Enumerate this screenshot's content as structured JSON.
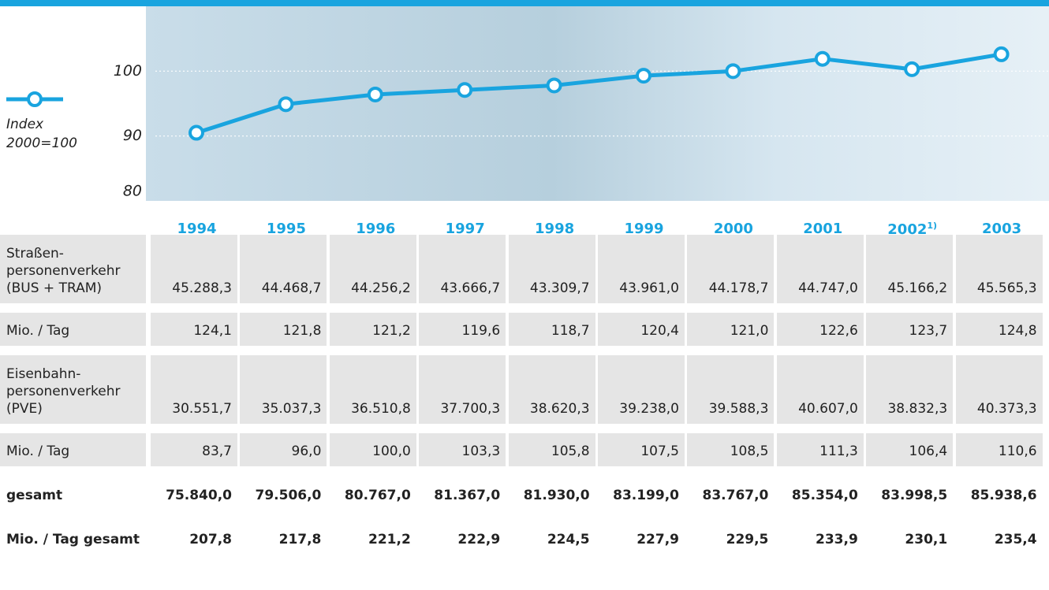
{
  "chart_data": {
    "type": "line",
    "categories": [
      "1994",
      "1995",
      "1996",
      "1997",
      "1998",
      "1999",
      "2000",
      "2001",
      "2002",
      "2003"
    ],
    "category_footnotes": [
      null,
      null,
      null,
      null,
      null,
      null,
      null,
      null,
      "1)",
      null
    ],
    "series": [
      {
        "name": "Index 2000=100",
        "color": "#19a4df",
        "values": [
          90.5,
          94.9,
          96.4,
          97.1,
          97.8,
          99.3,
          100,
          101.9,
          100.3,
          102.6
        ]
      }
    ],
    "ylim": [
      80,
      110
    ],
    "yticks": [
      80,
      90,
      100
    ],
    "grid": true
  },
  "table": {
    "rows": [
      {
        "label": [
          "Straßen-",
          "personenverkehr",
          "(BUS + TRAM)"
        ],
        "bold": false,
        "shaded": true,
        "cells": [
          "45.288,3",
          "44.468,7",
          "44.256,2",
          "43.666,7",
          "43.309,7",
          "43.961,0",
          "44.178,7",
          "44.747,0",
          "45.166,2",
          "45.565,3"
        ]
      },
      {
        "label": [
          "Mio. / Tag"
        ],
        "bold": false,
        "shaded": true,
        "cells": [
          "124,1",
          "121,8",
          "121,2",
          "119,6",
          "118,7",
          "120,4",
          "121,0",
          "122,6",
          "123,7",
          "124,8"
        ]
      },
      {
        "label": [
          "Eisenbahn-",
          "personenverkehr",
          "(PVE)"
        ],
        "bold": false,
        "shaded": true,
        "cells": [
          "30.551,7",
          "35.037,3",
          "36.510,8",
          "37.700,3",
          "38.620,3",
          "39.238,0",
          "39.588,3",
          "40.607,0",
          "38.832,3",
          "40.373,3"
        ]
      },
      {
        "label": [
          "Mio. / Tag"
        ],
        "bold": false,
        "shaded": true,
        "cells": [
          "83,7",
          "96,0",
          "100,0",
          "103,3",
          "105,8",
          "107,5",
          "108,5",
          "111,3",
          "106,4",
          "110,6"
        ]
      },
      {
        "label": [
          "gesamt"
        ],
        "bold": true,
        "shaded": false,
        "cells": [
          "75.840,0",
          "79.506,0",
          "80.767,0",
          "81.367,0",
          "81.930,0",
          "83.199,0",
          "83.767,0",
          "85.354,0",
          "83.998,5",
          "85.938,6"
        ]
      },
      {
        "label": [
          "Mio. / Tag gesamt"
        ],
        "bold": true,
        "shaded": false,
        "cells": [
          "207,8",
          "217,8",
          "221,2",
          "222,9",
          "224,5",
          "227,9",
          "229,5",
          "233,9",
          "230,1",
          "235,4"
        ]
      }
    ]
  }
}
